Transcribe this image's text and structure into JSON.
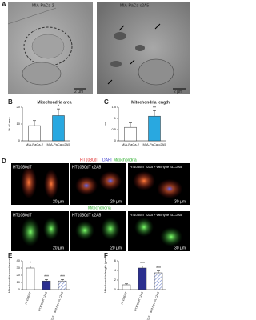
{
  "figure": {
    "panel_a": "A",
    "em_labels": [
      "MIA-PaCa-2",
      "MIA-PaCa-c2A5"
    ],
    "em_scale": [
      "2 µm",
      "2 µm"
    ],
    "panel_d": "D",
    "stain_header": [
      "HT1080dT",
      "DAPI",
      "Mitochondria"
    ],
    "row1_labels": [
      "HT1080dT",
      "HT1080dT c2A5",
      "HT1080dT c2A5 + wild type SLC2A5"
    ],
    "row1_scale": [
      "20 µm",
      "20 µm",
      "30 µm"
    ],
    "row2_title": "Mitochondria",
    "row2_labels": [
      "HT1080dT",
      "HT1080dT c2A5",
      "HT1080dT c2A5 + wild type SLC2A5"
    ],
    "row2_scale": [
      "20 µm",
      "20 µm",
      "30 µm"
    ]
  },
  "chart_data": [
    {
      "type": "bar",
      "panel": "B",
      "title": "Mitochondria area",
      "y_label": "% of area",
      "categories": [
        "MIA-PaCa-2",
        "MIA-PaCa-c2A5"
      ],
      "values": [
        9,
        15
      ],
      "errors": [
        3,
        4
      ],
      "significance": [
        null,
        "*"
      ],
      "colors": [
        "#ffffff",
        "#29a8e0"
      ],
      "ylim": [
        0,
        20
      ],
      "yticks": [
        0,
        10,
        20
      ]
    },
    {
      "type": "bar",
      "panel": "C",
      "title": "Mitochondria length",
      "y_label": "µm",
      "categories": [
        "MIA-PaCa-2",
        "MIA-PaCa-c2A5"
      ],
      "values": [
        0.6,
        1.1
      ],
      "errors": [
        0.2,
        0.25
      ],
      "significance": [
        null,
        "**"
      ],
      "colors": [
        "#ffffff",
        "#29a8e0"
      ],
      "ylim": [
        0,
        1.5
      ],
      "yticks": [
        0,
        0.5,
        1,
        1.5
      ]
    },
    {
      "type": "bar",
      "panel": "E",
      "title": null,
      "y_label": "Mitochondria number/cell",
      "categories": [
        "HT1080dT",
        "HT1080dT c2A5",
        "HT1080dT c2A5 + wild type SLC2A5"
      ],
      "values": [
        30,
        12,
        12
      ],
      "errors": [
        3,
        2,
        2
      ],
      "significance": [
        "*",
        "***",
        "***"
      ],
      "colors": [
        "#ffffff",
        "#2b2f8f",
        "hatch"
      ],
      "ylim": [
        0,
        40
      ],
      "yticks": [
        0,
        10,
        20,
        30,
        40
      ]
    },
    {
      "type": "bar",
      "panel": "F",
      "title": null,
      "y_label": "Mitochondria length (µm)",
      "categories": [
        "HT1080dT",
        "HT1080dT c2A5",
        "HT1080dT c2A5 + wild type SLC2A5"
      ],
      "values": [
        1,
        4.5,
        3.5
      ],
      "errors": [
        0.2,
        0.4,
        0.4
      ],
      "significance": [
        null,
        "***",
        "***"
      ],
      "colors": [
        "#ffffff",
        "#2b2f8f",
        "hatch"
      ],
      "ylim": [
        0,
        6
      ],
      "yticks": [
        0,
        2,
        4,
        6
      ]
    }
  ]
}
